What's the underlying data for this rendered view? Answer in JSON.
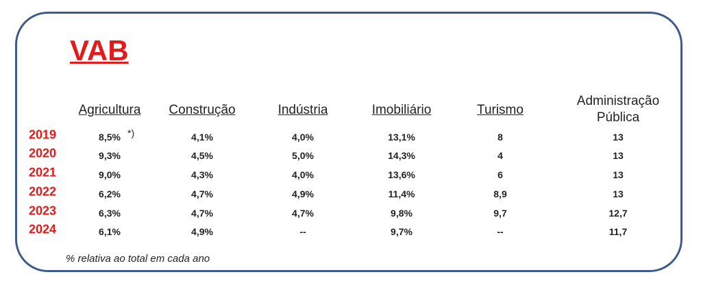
{
  "title": "VAB",
  "table": {
    "columns": [
      "Agricultura",
      "Construção",
      "Indústria",
      "Imobiliário",
      "Turismo",
      "Administração\nPública"
    ],
    "rows": [
      {
        "year": "2019",
        "cells": [
          "8,5%",
          "4,1%",
          "4,0%",
          "13,1%",
          "8",
          "13"
        ]
      },
      {
        "year": "2020",
        "cells": [
          "9,3%",
          "4,5%",
          "5,0%",
          "14,3%",
          "4",
          "13"
        ]
      },
      {
        "year": "2021",
        "cells": [
          "9,0%",
          "4,3%",
          "4,0%",
          "13,6%",
          "6",
          "13"
        ]
      },
      {
        "year": "2022",
        "cells": [
          "6,2%",
          "4,7%",
          "4,9%",
          "11,4%",
          "8,9",
          "13"
        ]
      },
      {
        "year": "2023",
        "cells": [
          "6,3%",
          "4,7%",
          "4,7%",
          "9,8%",
          "9,7",
          "12,7"
        ]
      },
      {
        "year": "2024",
        "cells": [
          "6,1%",
          "4,9%",
          "--",
          "9,7%",
          "--",
          "11,7"
        ]
      }
    ]
  },
  "note_marker": "*)",
  "footnote": "% relativa ao total em cada ano"
}
